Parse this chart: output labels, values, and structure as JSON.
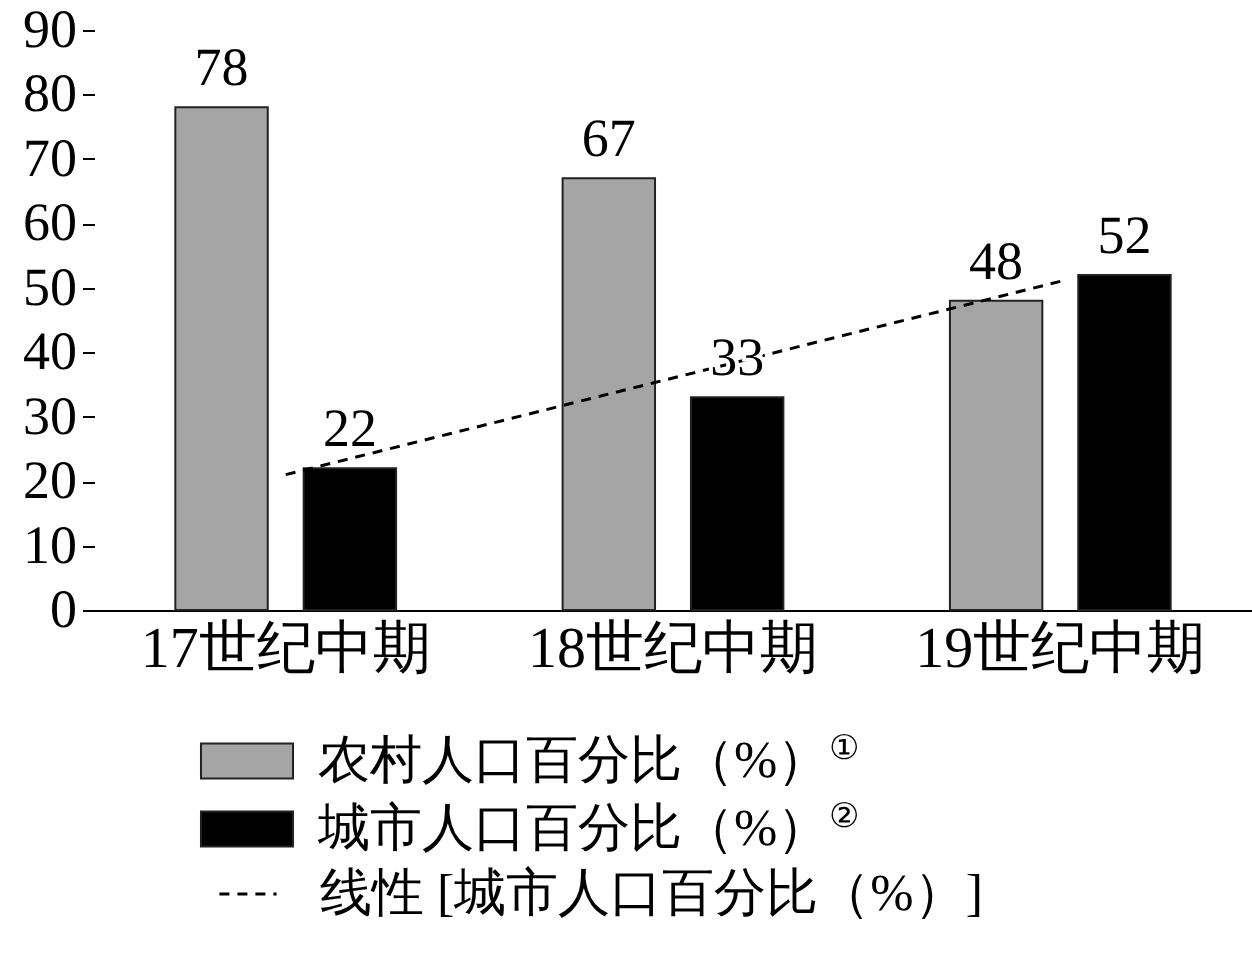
{
  "chart_data": {
    "type": "bar",
    "categories": [
      "17世纪中期",
      "18世纪中期",
      "19世纪中期"
    ],
    "series": [
      {
        "name": "农村人口百分比（%）$^{①}$",
        "color": "#a5a5a5",
        "values": [
          78,
          67,
          48
        ],
        "value_labels": [
          "78",
          "67",
          "48"
        ]
      },
      {
        "name": "城市人口百分比（%）$^{②}$",
        "color": "#000000",
        "values": [
          22,
          33,
          52
        ],
        "value_labels": [
          "22",
          "33",
          "52"
        ]
      },
      {
        "name": "线性 [城市人口百分比（%）]",
        "type": "line",
        "color": "#000000",
        "line_style": "dashed",
        "x": [
          "17世纪中期",
          "19世纪中期"
        ],
        "values": [
          21,
          51
        ]
      }
    ],
    "ylim": [
      0,
      90
    ],
    "yticks": [
      0,
      10,
      20,
      30,
      40,
      50,
      60,
      70,
      80,
      90
    ],
    "legend": "bottom"
  }
}
